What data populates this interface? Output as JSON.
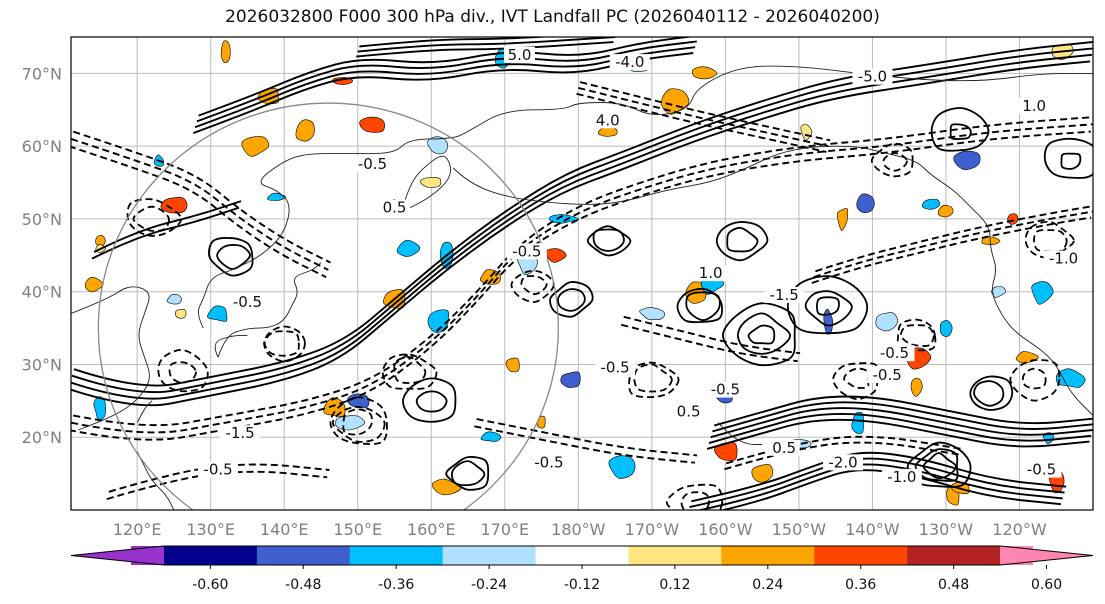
{
  "title": "2026032800 F000 300 hPa div., IVT Landfall PC (2026040112 - 2026040200)",
  "lat_labels": [
    "70°N",
    "60°N",
    "50°N",
    "40°N",
    "30°N",
    "20°N"
  ],
  "lat_values": [
    70,
    60,
    50,
    40,
    30,
    20
  ],
  "lon_labels": [
    "120°E",
    "130°E",
    "140°E",
    "150°E",
    "160°E",
    "170°E",
    "180°W",
    "170°W",
    "160°W",
    "150°W",
    "140°W",
    "130°W",
    "120°W"
  ],
  "lon_values": [
    120,
    130,
    140,
    150,
    160,
    170,
    180,
    190,
    200,
    210,
    220,
    230,
    240
  ],
  "map_extent": {
    "lon_min": 111,
    "lon_max": 250,
    "lat_min": 10,
    "lat_max": 75
  },
  "contour_labels": [
    {
      "text": "5.0",
      "lon": 172,
      "lat": 72
    },
    {
      "text": "-4.0",
      "lon": 187,
      "lat": 71
    },
    {
      "text": "-5.0",
      "lon": 220,
      "lat": 69
    },
    {
      "text": "4.0",
      "lon": 184,
      "lat": 63
    },
    {
      "text": "-0.5",
      "lon": 152,
      "lat": 57
    },
    {
      "text": "0.5",
      "lon": 155,
      "lat": 51
    },
    {
      "text": "-0.5",
      "lon": 173,
      "lat": 45
    },
    {
      "text": "1.0",
      "lon": 198,
      "lat": 42
    },
    {
      "text": "-1.5",
      "lon": 208,
      "lat": 39
    },
    {
      "text": "-0.5",
      "lon": 135,
      "lat": 38
    },
    {
      "text": "-0.5",
      "lon": 185,
      "lat": 29
    },
    {
      "text": "-0.5",
      "lon": 223,
      "lat": 31
    },
    {
      "text": "-0.5",
      "lon": 222,
      "lat": 28
    },
    {
      "text": "0.5",
      "lon": 195,
      "lat": 23
    },
    {
      "text": "-0.5",
      "lon": 200,
      "lat": 26
    },
    {
      "text": "-1.5",
      "lon": 134,
      "lat": 20
    },
    {
      "text": "-2.0",
      "lon": 216,
      "lat": 16
    },
    {
      "text": "-0.5",
      "lon": 176,
      "lat": 16
    },
    {
      "text": "0.5",
      "lon": 208,
      "lat": 18
    },
    {
      "text": "-1.0",
      "lon": 224,
      "lat": 14
    },
    {
      "text": "-0.5",
      "lon": 243,
      "lat": 15
    },
    {
      "text": "-0.5",
      "lon": 131,
      "lat": 15
    },
    {
      "text": "1.0",
      "lon": 242,
      "lat": 65
    },
    {
      "text": "-1.0",
      "lon": 246,
      "lat": 44
    }
  ],
  "colorbar": {
    "colors": [
      "#9932cc",
      "#00008b",
      "#3f5fcf",
      "#00bfff",
      "#b0e2ff",
      "#ffffff",
      "#ffe680",
      "#ffa500",
      "#ff4500",
      "#b22222",
      "#ff86b0"
    ],
    "tick_labels": [
      "-0.60",
      "-0.48",
      "-0.36",
      "-0.24",
      "-0.12",
      "0.12",
      "0.24",
      "0.36",
      "0.48",
      "0.60"
    ],
    "tick_values": [
      -0.6,
      -0.48,
      -0.36,
      -0.24,
      -0.12,
      0.12,
      0.24,
      0.36,
      0.48,
      0.6
    ]
  }
}
